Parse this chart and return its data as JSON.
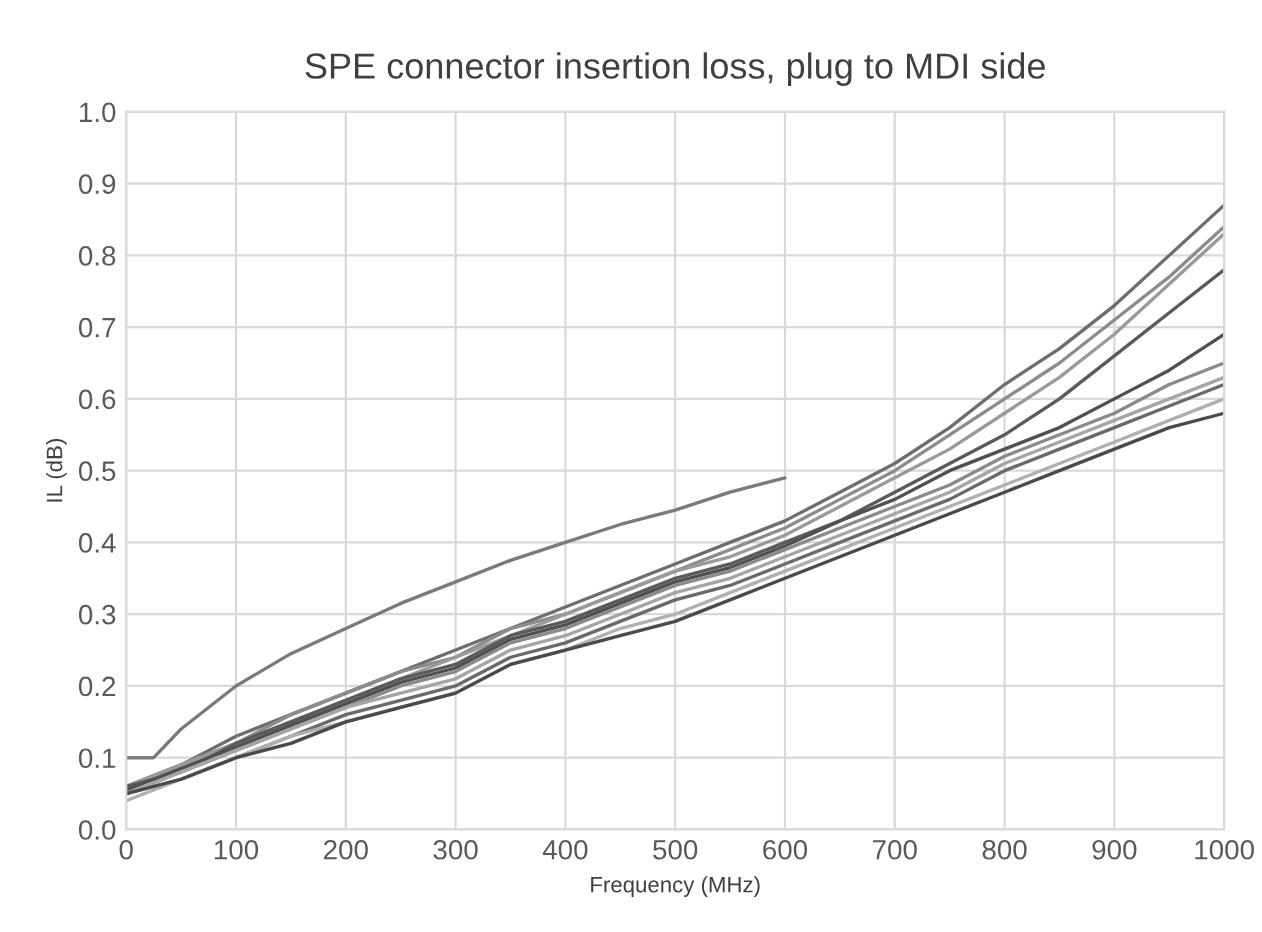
{
  "chart_data": {
    "type": "line",
    "title": "SPE connector insertion loss, plug to MDI side",
    "xlabel": "Frequency (MHz)",
    "ylabel": "IL (dB)",
    "x": [
      0,
      50,
      100,
      150,
      200,
      250,
      300,
      350,
      400,
      450,
      500,
      550,
      600,
      650,
      700,
      750,
      800,
      850,
      900,
      950,
      1000
    ],
    "series": [
      {
        "color": "#7a7a7a",
        "x": [
          0,
          25,
          50,
          100,
          150,
          200,
          250,
          300,
          350,
          400,
          450,
          500,
          550,
          600
        ],
        "values": [
          0.1,
          0.1,
          0.14,
          0.2,
          0.245,
          0.28,
          0.315,
          0.345,
          0.375,
          0.4,
          0.425,
          0.445,
          0.47,
          0.49
        ]
      },
      {
        "color": "#6e6e6e",
        "values": [
          0.06,
          0.09,
          0.13,
          0.16,
          0.19,
          0.22,
          0.25,
          0.28,
          0.31,
          0.34,
          0.37,
          0.4,
          0.43,
          0.47,
          0.51,
          0.56,
          0.62,
          0.67,
          0.73,
          0.8,
          0.87
        ]
      },
      {
        "color": "#8c8c8c",
        "values": [
          0.06,
          0.09,
          0.12,
          0.16,
          0.19,
          0.22,
          0.24,
          0.28,
          0.3,
          0.33,
          0.36,
          0.39,
          0.42,
          0.46,
          0.5,
          0.55,
          0.6,
          0.65,
          0.71,
          0.77,
          0.84
        ]
      },
      {
        "color": "#9a9a9a",
        "values": [
          0.06,
          0.09,
          0.12,
          0.15,
          0.18,
          0.21,
          0.24,
          0.27,
          0.3,
          0.33,
          0.36,
          0.38,
          0.41,
          0.45,
          0.49,
          0.53,
          0.58,
          0.63,
          0.69,
          0.76,
          0.83
        ]
      },
      {
        "color": "#5a5a5a",
        "values": [
          0.06,
          0.08,
          0.12,
          0.15,
          0.18,
          0.21,
          0.23,
          0.27,
          0.29,
          0.32,
          0.35,
          0.37,
          0.4,
          0.43,
          0.47,
          0.51,
          0.55,
          0.6,
          0.66,
          0.72,
          0.78
        ]
      },
      {
        "color": "#505050",
        "values": [
          0.055,
          0.085,
          0.115,
          0.145,
          0.175,
          0.205,
          0.225,
          0.265,
          0.285,
          0.315,
          0.345,
          0.365,
          0.395,
          0.43,
          0.46,
          0.5,
          0.53,
          0.56,
          0.6,
          0.64,
          0.69
        ]
      },
      {
        "color": "#8a8a8a",
        "values": [
          0.05,
          0.08,
          0.11,
          0.14,
          0.17,
          0.2,
          0.22,
          0.26,
          0.28,
          0.31,
          0.34,
          0.36,
          0.39,
          0.42,
          0.45,
          0.48,
          0.52,
          0.55,
          0.58,
          0.62,
          0.65
        ]
      },
      {
        "color": "#a5a5a5",
        "values": [
          0.05,
          0.08,
          0.11,
          0.14,
          0.17,
          0.19,
          0.21,
          0.25,
          0.27,
          0.3,
          0.33,
          0.35,
          0.38,
          0.41,
          0.44,
          0.47,
          0.51,
          0.54,
          0.57,
          0.6,
          0.63
        ]
      },
      {
        "color": "#6a6a6a",
        "values": [
          0.05,
          0.07,
          0.1,
          0.13,
          0.16,
          0.18,
          0.2,
          0.24,
          0.26,
          0.29,
          0.32,
          0.34,
          0.37,
          0.4,
          0.43,
          0.46,
          0.5,
          0.53,
          0.56,
          0.59,
          0.62
        ]
      },
      {
        "color": "#b0b0b0",
        "values": [
          0.04,
          0.07,
          0.1,
          0.13,
          0.15,
          0.17,
          0.19,
          0.23,
          0.25,
          0.28,
          0.3,
          0.33,
          0.36,
          0.39,
          0.42,
          0.45,
          0.48,
          0.51,
          0.54,
          0.57,
          0.6
        ]
      },
      {
        "color": "#4a4a4a",
        "values": [
          0.05,
          0.07,
          0.1,
          0.12,
          0.15,
          0.17,
          0.19,
          0.23,
          0.25,
          0.27,
          0.29,
          0.32,
          0.35,
          0.38,
          0.41,
          0.44,
          0.47,
          0.5,
          0.53,
          0.56,
          0.58
        ]
      }
    ],
    "xlim": [
      0,
      1000
    ],
    "xticks": [
      0,
      100,
      200,
      300,
      400,
      500,
      600,
      700,
      800,
      900,
      1000
    ],
    "ylim": [
      0,
      1
    ],
    "yticks": [
      {
        "value": 0,
        "label": "0.0"
      },
      0.1,
      0.2,
      0.3,
      0.4,
      0.5,
      0.6,
      0.7,
      0.8,
      0.9,
      {
        "value": 1,
        "label": "1.0"
      }
    ],
    "grid": true
  }
}
